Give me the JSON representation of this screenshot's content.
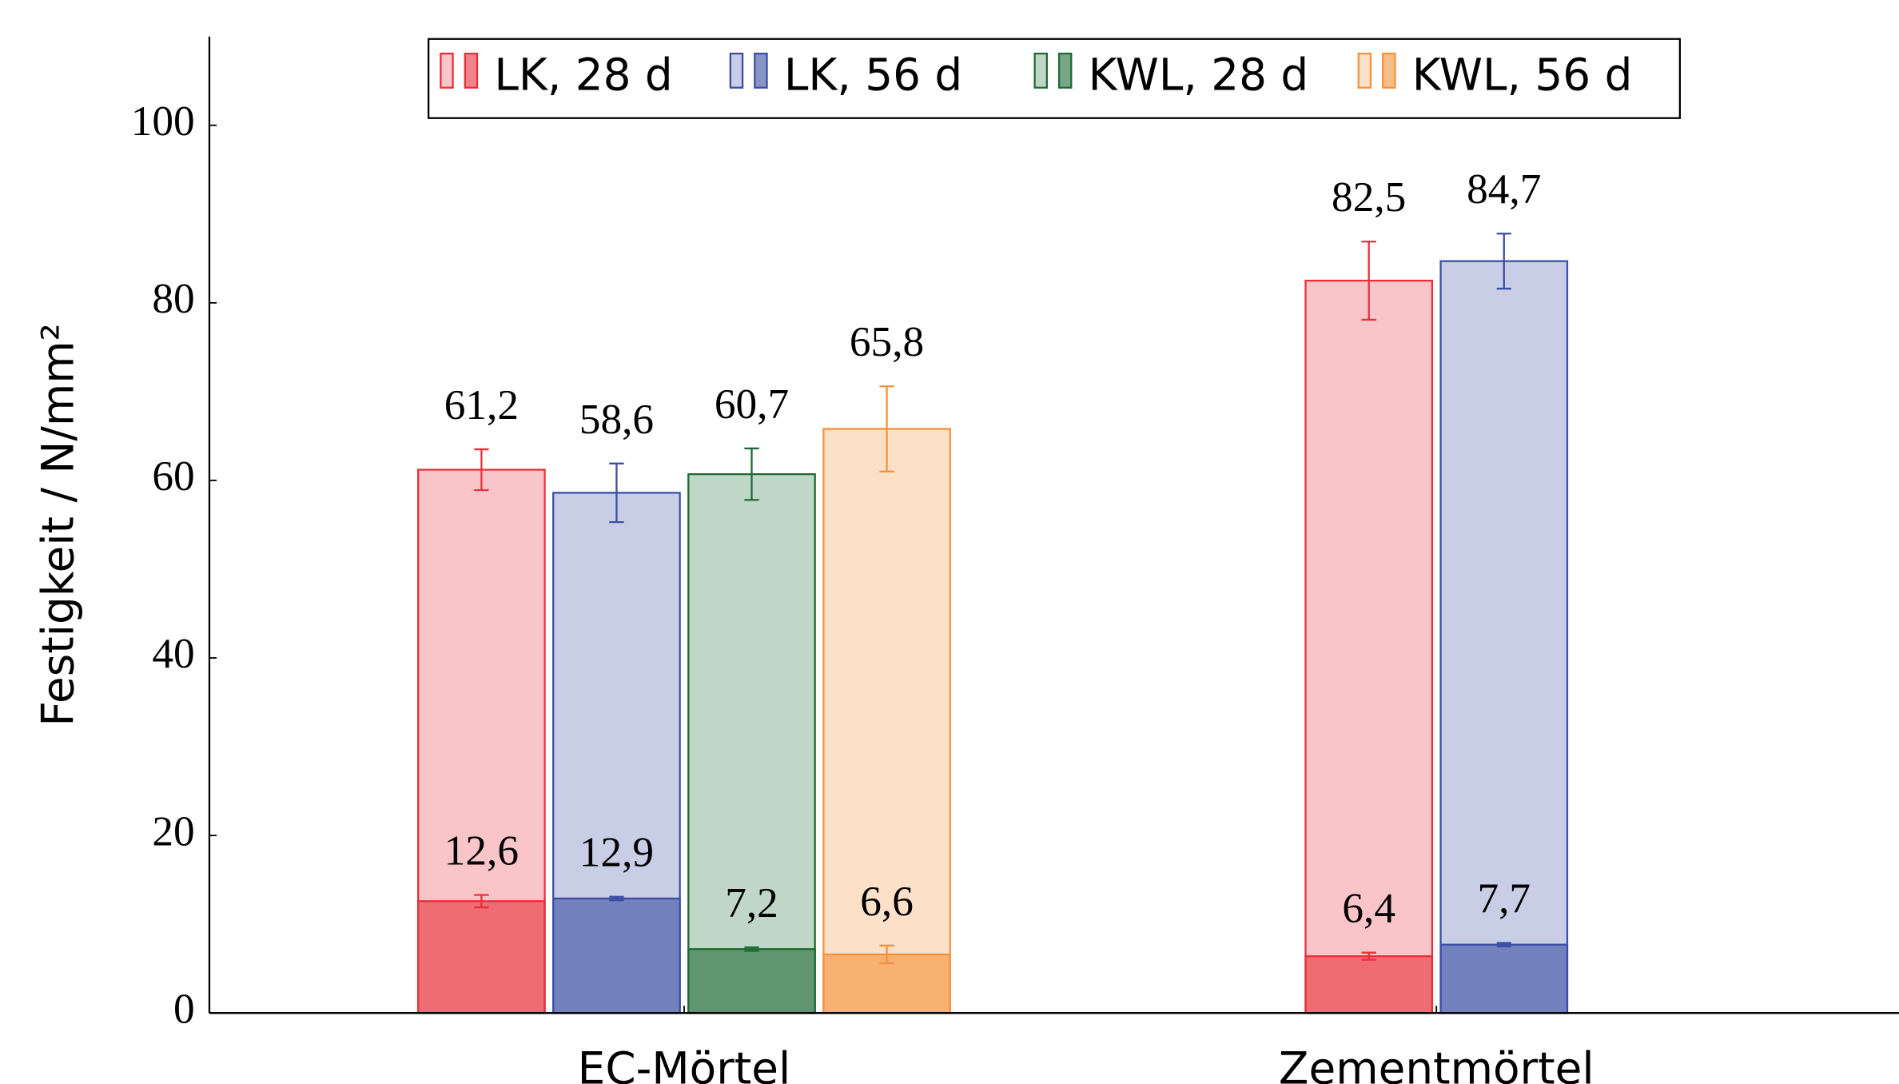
{
  "chart_data": {
    "type": "bar",
    "y_label": "Festigkeit / N/mm²",
    "categories": [
      "EC-Mörtel",
      "Zementmörtel"
    ],
    "ylim": [
      0,
      110
    ],
    "yticks": [
      0,
      20,
      40,
      60,
      80,
      100
    ],
    "legend": "top",
    "series": [
      {
        "name": "LK, 28 d",
        "color": "#e8303a",
        "values": [
          61.2,
          82.5
        ],
        "errors": [
          2.3,
          4.4
        ],
        "value_labels": [
          "61,2",
          "82,5"
        ],
        "values_low": [
          12.6,
          6.4
        ],
        "errors_low": [
          0.7,
          0.4
        ],
        "value_labels_low": [
          "12,6",
          "6,4"
        ]
      },
      {
        "name": "LK, 56 d",
        "color": "#3b4fa5",
        "values": [
          58.6,
          84.7
        ],
        "errors": [
          3.3,
          3.1
        ],
        "value_labels": [
          "58,6",
          "84,7"
        ],
        "values_low": [
          12.9,
          7.7
        ],
        "errors_low": [
          0.2,
          0.2
        ],
        "value_labels_low": [
          "12,9",
          "7,7"
        ]
      },
      {
        "name": "KWL, 28 d",
        "color": "#1e6b35",
        "values": [
          60.7,
          null
        ],
        "errors": [
          2.9,
          null
        ],
        "value_labels": [
          "60,7",
          null
        ],
        "values_low": [
          7.2,
          null
        ],
        "errors_low": [
          0.2,
          null
        ],
        "value_labels_low": [
          "7,2",
          null
        ]
      },
      {
        "name": "KWL, 56 d",
        "color": "#f5913b",
        "values": [
          65.8,
          null
        ],
        "errors": [
          4.8,
          null
        ],
        "value_labels": [
          "65,8",
          null
        ],
        "values_low": [
          6.6,
          null
        ],
        "errors_low": [
          1.0,
          null
        ],
        "value_labels_low": [
          "6,6",
          null
        ]
      }
    ]
  }
}
